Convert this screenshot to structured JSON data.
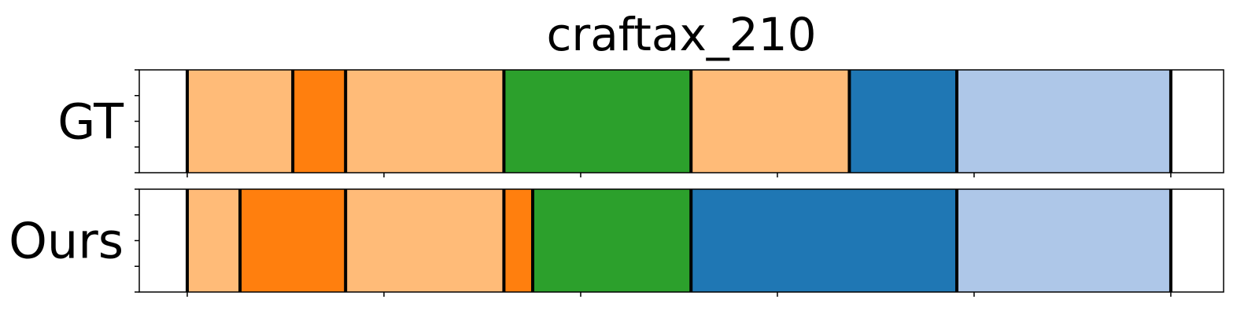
{
  "chart_data": {
    "type": "bar",
    "title": "craftax_210",
    "rows": [
      {
        "label": "GT",
        "segments": [
          {
            "start": 0,
            "end": 11,
            "color": "#ffbb78"
          },
          {
            "start": 11,
            "end": 16.5,
            "color": "#ff7f0e"
          },
          {
            "start": 16.5,
            "end": 33,
            "color": "#ffbb78"
          },
          {
            "start": 33,
            "end": 52.5,
            "color": "#2ca02c"
          },
          {
            "start": 52.5,
            "end": 69,
            "color": "#ffbb78"
          },
          {
            "start": 69,
            "end": 80.2,
            "color": "#1f77b4"
          },
          {
            "start": 80.2,
            "end": 102.5,
            "color": "#aec7e8"
          }
        ]
      },
      {
        "label": "Ours",
        "segments": [
          {
            "start": 0,
            "end": 5.5,
            "color": "#ffbb78"
          },
          {
            "start": 5.5,
            "end": 16.5,
            "color": "#ff7f0e"
          },
          {
            "start": 16.5,
            "end": 33,
            "color": "#ffbb78"
          },
          {
            "start": 33,
            "end": 36,
            "color": "#ff7f0e"
          },
          {
            "start": 36,
            "end": 52.5,
            "color": "#2ca02c"
          },
          {
            "start": 52.5,
            "end": 80.2,
            "color": "#1f77b4"
          },
          {
            "start": 80.2,
            "end": 102.5,
            "color": "#aec7e8"
          }
        ]
      }
    ],
    "xlim": [
      -5,
      108
    ],
    "xticks": [
      0,
      20.5,
      41,
      61.5,
      82,
      102.5
    ],
    "yticks_per_row": 5,
    "grid": false,
    "legend": "none"
  }
}
